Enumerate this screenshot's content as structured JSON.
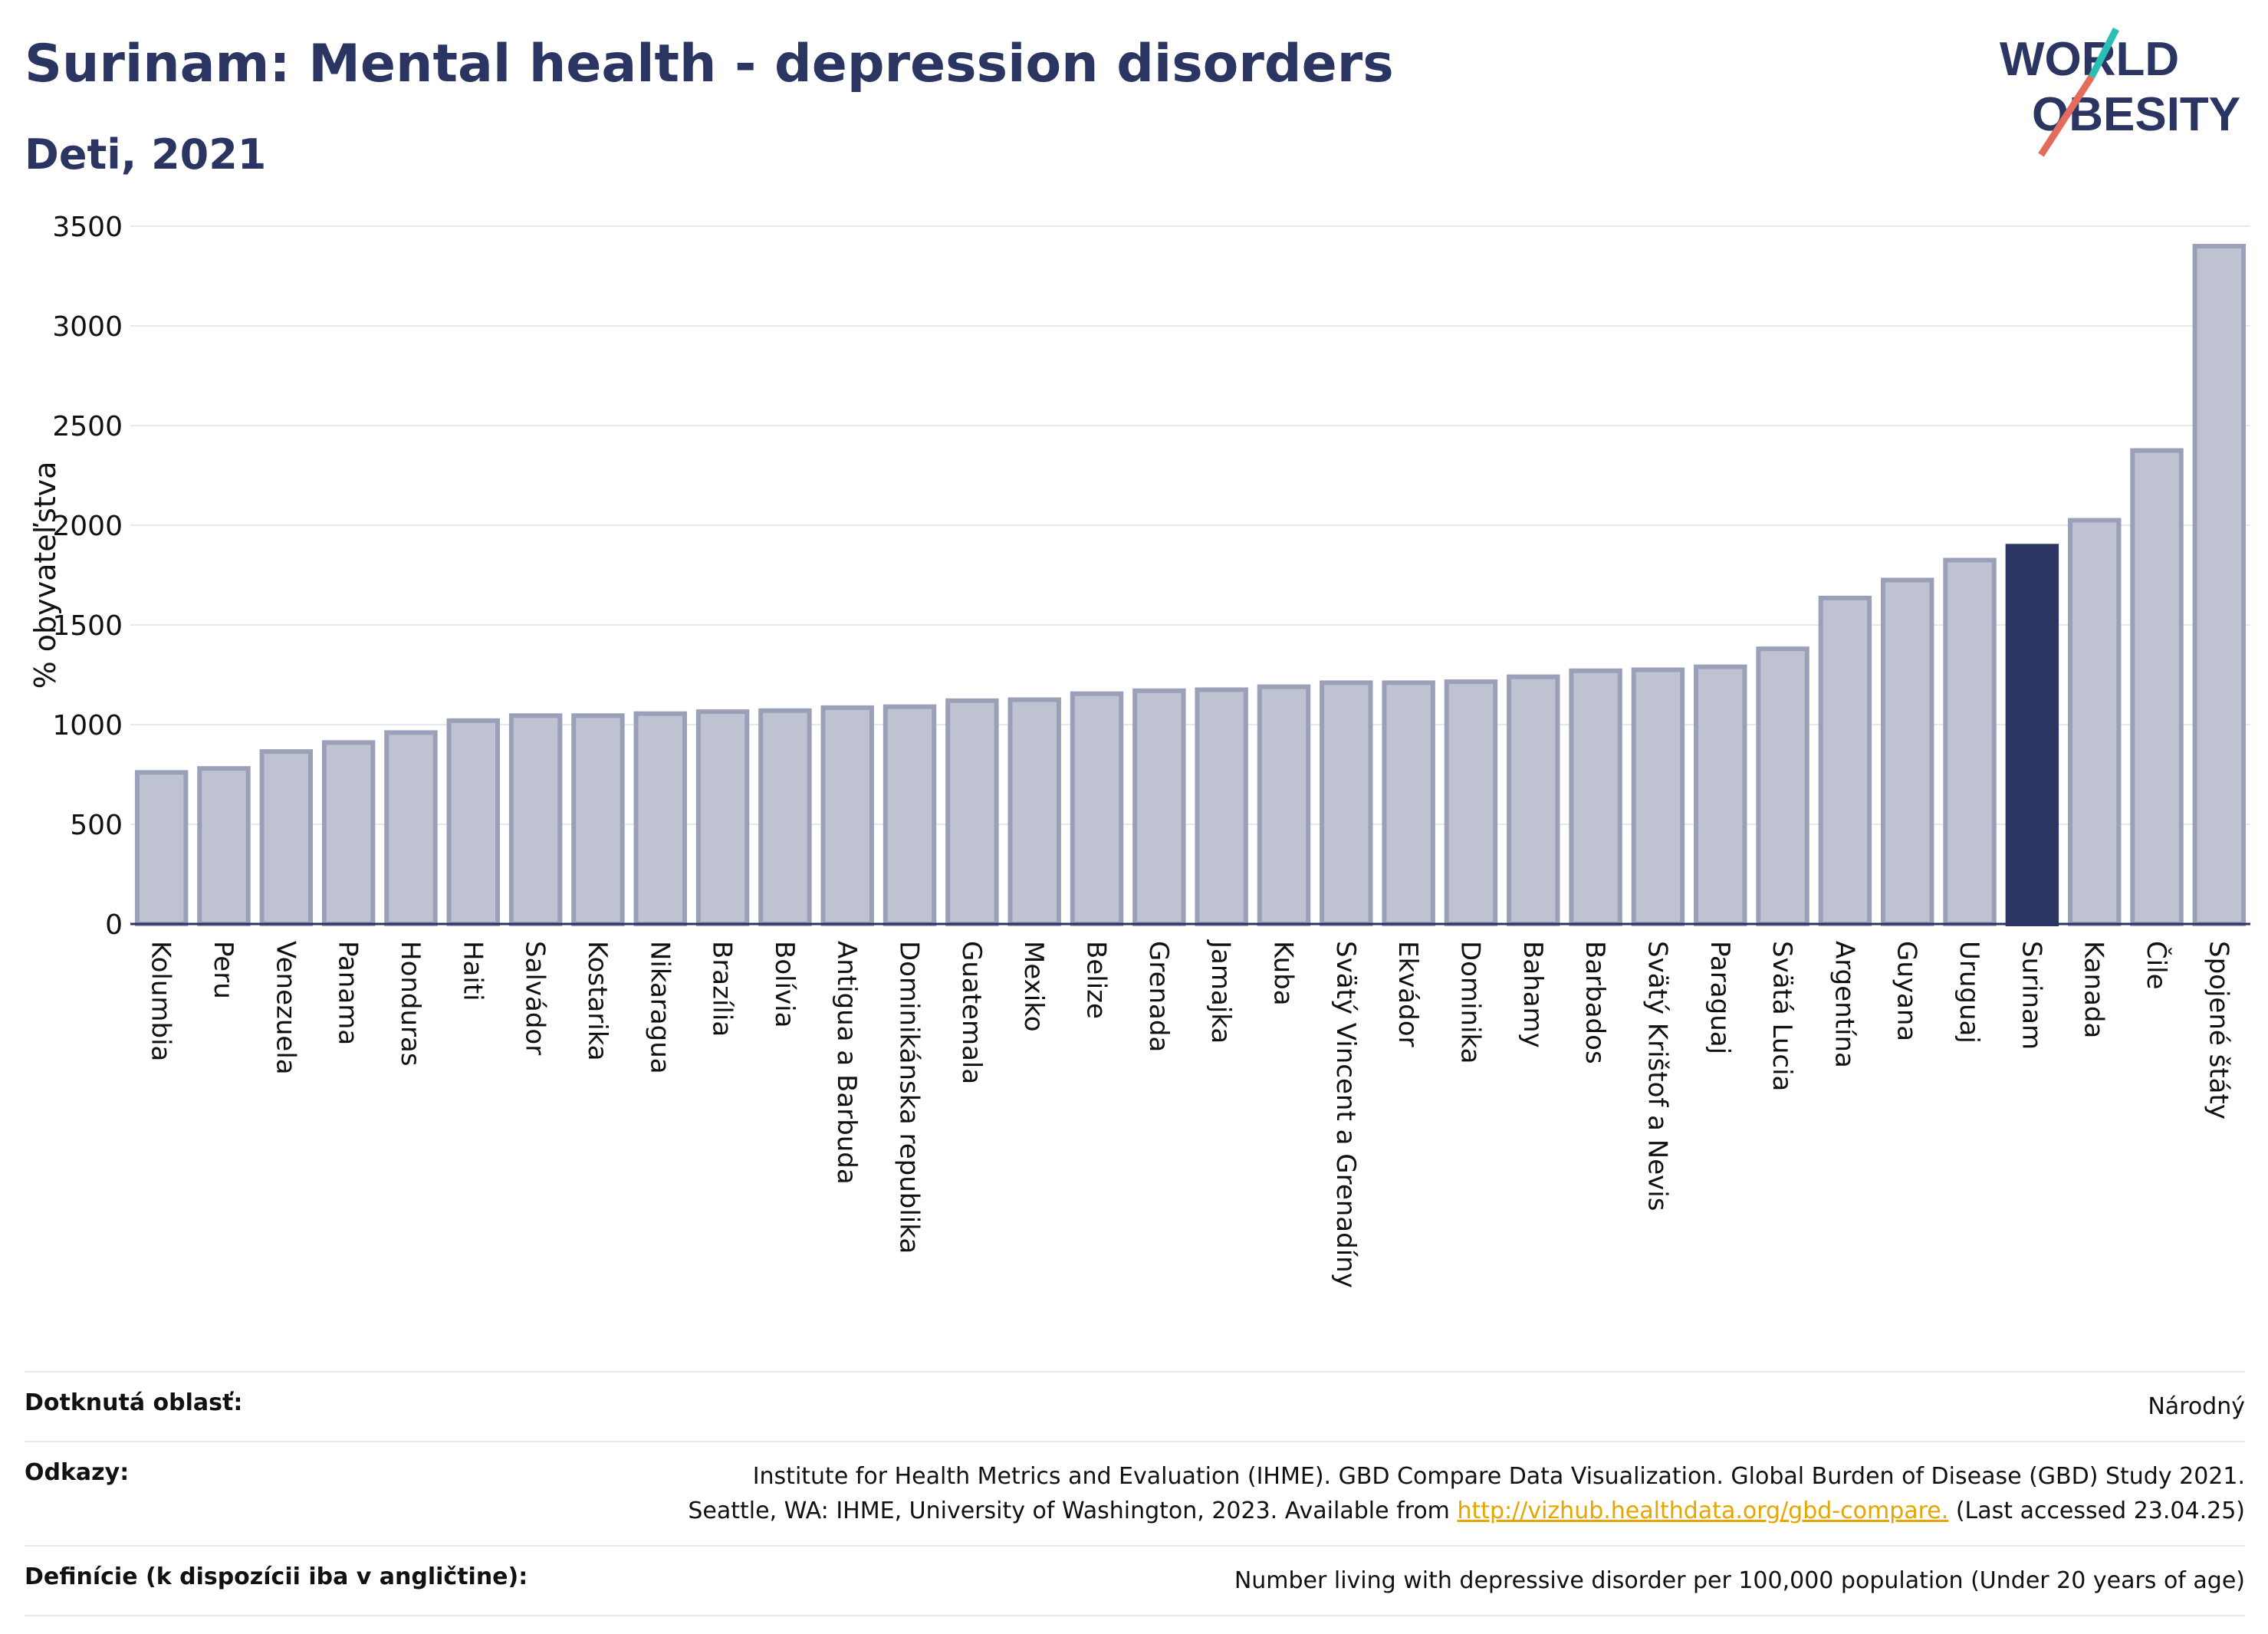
{
  "header": {
    "title": "Surinam: Mental health - depression disorders",
    "subtitle": "Deti, 2021",
    "logo_line1": "WORLD",
    "logo_line2": "OBESITY"
  },
  "chart_data": {
    "type": "bar",
    "title": "Surinam: Mental health - depression disorders",
    "subtitle": "Deti, 2021",
    "ylabel": "% obyvateľstva",
    "xlabel": "",
    "ylim": [
      0,
      3500
    ],
    "yticks": [
      0,
      500,
      1000,
      1500,
      2000,
      2500,
      3000,
      3500
    ],
    "grid": true,
    "highlight": "Surinam",
    "colors": {
      "bar": "#bfc3d1",
      "bar_edge": "#9aa0b8",
      "highlight": "#2b3561"
    },
    "categories": [
      "Kolumbia",
      "Peru",
      "Venezuela",
      "Panama",
      "Honduras",
      "Haiti",
      "Salvádor",
      "Kostarika",
      "Nikaragua",
      "Brazília",
      "Bolívia",
      "Antigua a Barbuda",
      "Dominikánska republika",
      "Guatemala",
      "Mexiko",
      "Belize",
      "Grenada",
      "Jamajka",
      "Kuba",
      "Svätý Vincent a Grenadíny",
      "Ekvádor",
      "Dominika",
      "Bahamy",
      "Barbados",
      "Svätý Krištof a Nevis",
      "Paraguaj",
      "Svätá Lucia",
      "Argentína",
      "Guyana",
      "Uruguaj",
      "Surinam",
      "Kanada",
      "Čile",
      "Spojené štáty"
    ],
    "values": [
      760,
      780,
      865,
      910,
      960,
      1020,
      1045,
      1045,
      1055,
      1065,
      1070,
      1085,
      1090,
      1120,
      1125,
      1155,
      1170,
      1175,
      1190,
      1210,
      1210,
      1215,
      1240,
      1270,
      1275,
      1290,
      1380,
      1635,
      1725,
      1825,
      1895,
      2025,
      2375,
      3400
    ]
  },
  "footer": {
    "area_label": "Dotknutá oblasť:",
    "area_value": "Národný",
    "refs_label": "Odkazy:",
    "refs_line1": "Institute for Health Metrics and Evaluation (IHME). GBD Compare Data Visualization. Global Burden of Disease (GBD) Study 2021.",
    "refs_line2_pre": "Seattle, WA: IHME, University of Washington, 2023. Available from ",
    "refs_link": "http://vizhub.healthdata.org/gbd-compare.",
    "refs_line2_post": " (Last accessed 23.04.25)",
    "def_label": "Definície (k dispozícii iba v angličtine):",
    "def_value": "Number living with depressive disorder per 100,000 population (Under 20 years of age)"
  }
}
